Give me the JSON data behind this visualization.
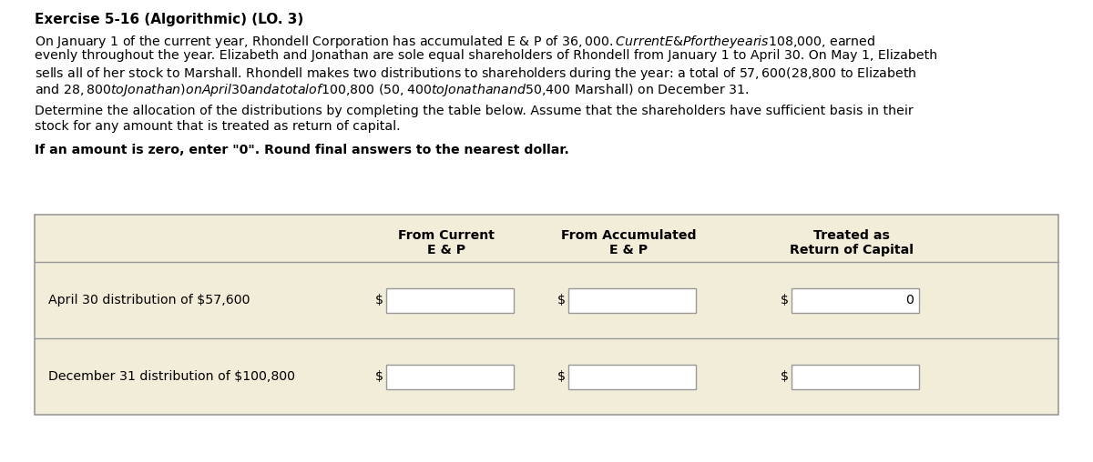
{
  "title": "Exercise 5-16 (Algorithmic) (LO. 3)",
  "para1_lines": [
    "On January 1 of the current year, Rhondell Corporation has accumulated E & P of $36,000. Current E & P for the year is $108,000, earned",
    "evenly throughout the year. Elizabeth and Jonathan are sole equal shareholders of Rhondell from January 1 to April 30. On May 1, Elizabeth",
    "sells all of her stock to Marshall. Rhondell makes two distributions to shareholders during the year: a total of $57,600 ($28,800 to Elizabeth",
    "and $28,800 to Jonathan) on April 30 and a total of $100,800 ($50,400 to Jonathan and $50,400 Marshall) on December 31."
  ],
  "para2_lines": [
    "Determine the allocation of the distributions by completing the table below. Assume that the shareholders have sufficient basis in their",
    "stock for any amount that is treated as return of capital."
  ],
  "para3": "If an amount is zero, enter \"0\". Round final answers to the nearest dollar.",
  "col_header1a": "From Current",
  "col_header1b": "E & P",
  "col_header2a": "From Accumulated",
  "col_header2b": "E & P",
  "col_header3a": "Treated as",
  "col_header3b": "Return of Capital",
  "row1_label": "April 30 distribution of $57,600",
  "row2_label": "December 31 distribution of $100,800",
  "row1_col3_value": "0",
  "bg_color": "#f2edd8",
  "white": "#ffffff",
  "border": "#999999",
  "text_color": "#000000"
}
